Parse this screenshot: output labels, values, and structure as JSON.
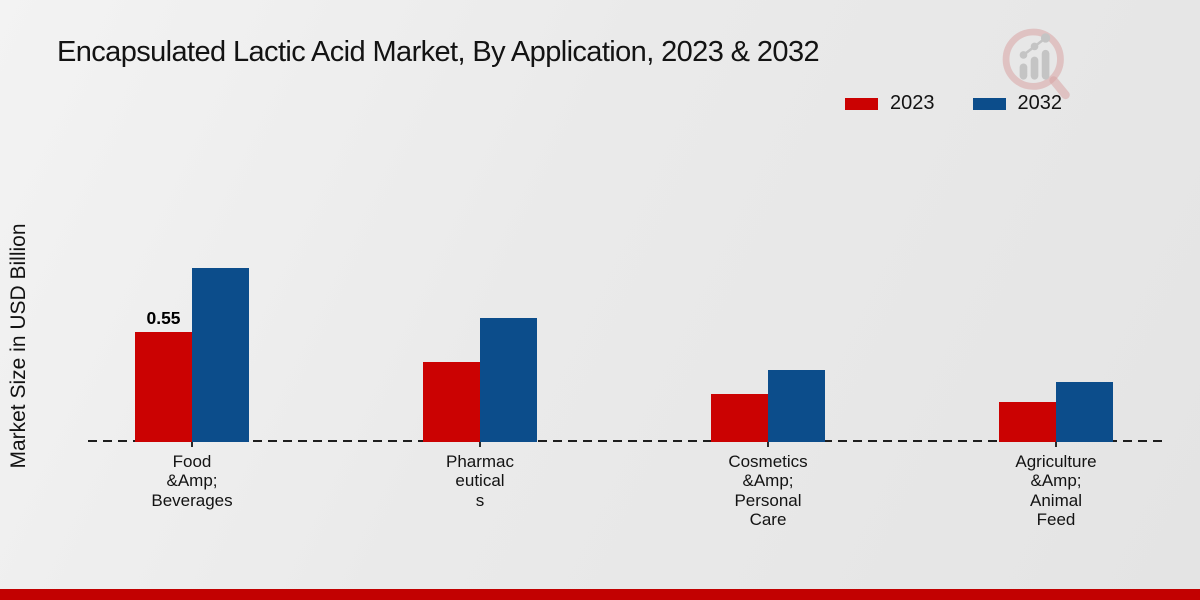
{
  "page": {
    "title": "Encapsulated Lactic Acid Market, By Application, 2023 & 2032",
    "footer_bar_color": "#c20101",
    "background_color": "#eaeaea"
  },
  "legend": {
    "items": [
      {
        "label": "2023",
        "color": "#cb0202"
      },
      {
        "label": "2032",
        "color": "#0c4d8b"
      }
    ]
  },
  "icons": {
    "watermark": "magnifier-bar-chart-logo"
  },
  "chart_data": {
    "type": "bar",
    "title": "Encapsulated Lactic Acid Market, By Application, 2023 & 2032",
    "ylabel": "Market Size in USD Billion",
    "xlabel": "",
    "categories": [
      "Food &Amp; Beverages",
      "Pharmaceuticals",
      "Cosmetics &Amp; Personal Care",
      "Agriculture &Amp; Animal Feed"
    ],
    "category_display": [
      "Food\n&Amp;\nBeverages",
      "Pharmac\neutical\ns",
      "Cosmetics\n&Amp;\nPersonal\nCare",
      "Agriculture\n&Amp;\nAnimal\nFeed"
    ],
    "series": [
      {
        "name": "2023",
        "color": "#cb0202",
        "values": [
          0.55,
          0.4,
          0.24,
          0.2
        ]
      },
      {
        "name": "2032",
        "color": "#0c4d8b",
        "values": [
          0.87,
          0.62,
          0.36,
          0.3
        ]
      }
    ],
    "data_labels": [
      {
        "series": "2023",
        "category_index": 0,
        "text": "0.55"
      }
    ],
    "ylim": [
      0,
      1
    ],
    "y_axis_ticks_visible": false,
    "grid": false,
    "baseline_style": "dashed",
    "legend_position": "top-right"
  }
}
